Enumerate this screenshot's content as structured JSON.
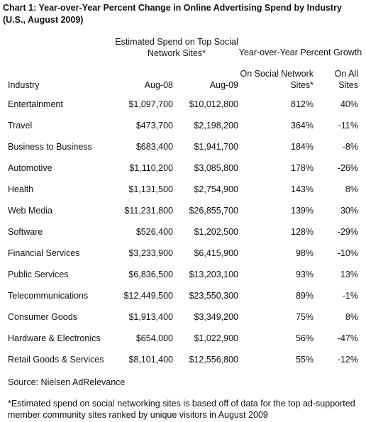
{
  "chart_data": {
    "type": "table",
    "title": "Chart 1: Year-over-Year Percent Change in Online Advertising Spend by Industry (U.S., August 2009)",
    "group_headers": {
      "spend": "Estimated Spend on Top Social Network Sites*",
      "growth": "Year-over-Year Percent Growth"
    },
    "columns": [
      "Industry",
      "Aug-08",
      "Aug-09",
      "On Social Network Sites*",
      "On All Sites"
    ],
    "rows": [
      [
        "Entertainment",
        "$1,097,700",
        "$10,012,800",
        "812%",
        "40%"
      ],
      [
        "Travel",
        "$473,700",
        "$2,198,200",
        "364%",
        "-11%"
      ],
      [
        "Business to Business",
        "$683,400",
        "$1,941,700",
        "184%",
        "-8%"
      ],
      [
        "Automotive",
        "$1,110,200",
        "$3,085,800",
        "178%",
        "-26%"
      ],
      [
        "Health",
        "$1,131,500",
        "$2,754,900",
        "143%",
        "8%"
      ],
      [
        "Web Media",
        "$11,231,800",
        "$26,855,700",
        "139%",
        "30%"
      ],
      [
        "Software",
        "$526,400",
        "$1,202,500",
        "128%",
        "-29%"
      ],
      [
        "Financial Services",
        "$3,233,900",
        "$6,415,900",
        "98%",
        "-10%"
      ],
      [
        "Public Services",
        "$6,836,500",
        "$13,203,100",
        "93%",
        "13%"
      ],
      [
        "Telecommunications",
        "$12,449,500",
        "$23,550,300",
        "89%",
        "-1%"
      ],
      [
        "Consumer Goods",
        "$1,913,400",
        "$3,349,200",
        "75%",
        "8%"
      ],
      [
        "Hardware & Electronics",
        "$654,000",
        "$1,022,900",
        "56%",
        "-47%"
      ],
      [
        "Retail Goods & Services",
        "$8,101,400",
        "$12,556,800",
        "55%",
        "-12%"
      ]
    ],
    "source": "Source: Nielsen AdRelevance",
    "footnote": "*Estimated spend on social networking sites is based off of data for the top ad-supported member community sites ranked by unique visitors in August 2009"
  }
}
